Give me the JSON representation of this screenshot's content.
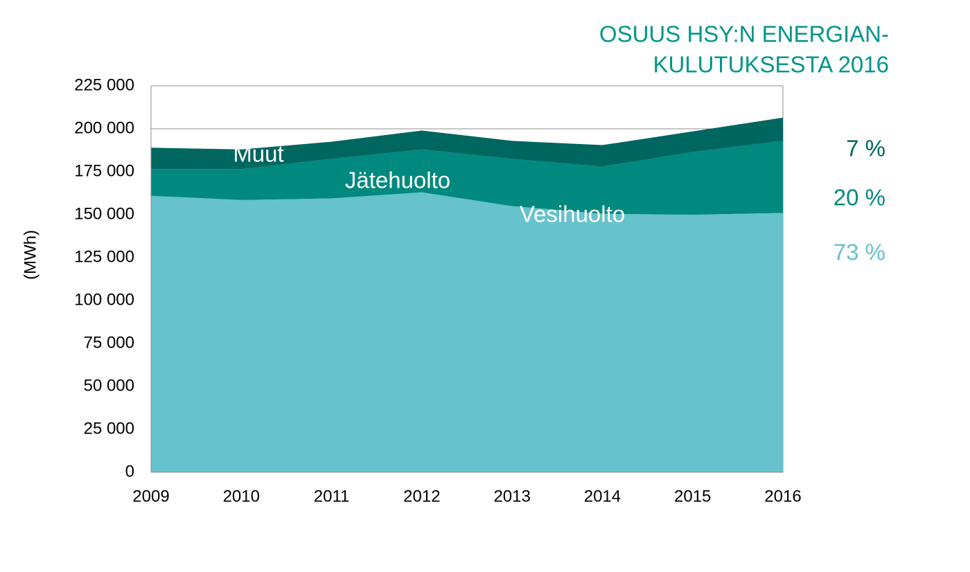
{
  "chart_data": {
    "type": "stacked-area",
    "title": [
      "OSUUS HSY:N ENERGIAN-",
      "KULUTUKSESTA 2016"
    ],
    "y_label": "(MWh)",
    "categories": [
      "2009",
      "2010",
      "2011",
      "2012",
      "2013",
      "2014",
      "2015",
      "2016"
    ],
    "series": [
      {
        "name": "Vesihuolto",
        "color": "#66c2cc",
        "values": [
          161000,
          158500,
          159500,
          163000,
          155000,
          150500,
          150000,
          151000
        ]
      },
      {
        "name": "Jätehuolto",
        "color": "#00897e",
        "values": [
          15500,
          18000,
          23000,
          25000,
          27500,
          27500,
          36500,
          42000
        ]
      },
      {
        "name": "Muut",
        "color": "#006660",
        "values": [
          12500,
          11500,
          10000,
          11000,
          10500,
          12500,
          12000,
          13500
        ]
      }
    ],
    "annotations": [
      {
        "text": "73 %",
        "color": "#66c2cc"
      },
      {
        "text": "20 %",
        "color": "#00897e"
      },
      {
        "text": "7 %",
        "color": "#006660"
      }
    ],
    "ylim": [
      0,
      225000
    ],
    "yticks": [
      0,
      {
        "value": 25000,
        "label": "25 000"
      },
      {
        "value": 50000,
        "label": "50 000"
      },
      {
        "value": 75000,
        "label": "75 000"
      },
      {
        "value": 100000,
        "label": "100 000"
      },
      {
        "value": 125000,
        "label": "125 000"
      },
      {
        "value": 150000,
        "label": "150 000"
      },
      {
        "value": 175000,
        "label": "175 000"
      },
      {
        "value": 200000,
        "label": "200 000"
      },
      {
        "value": 225000,
        "label": "225 000"
      }
    ],
    "grid": true,
    "title_color": "#00958a"
  }
}
